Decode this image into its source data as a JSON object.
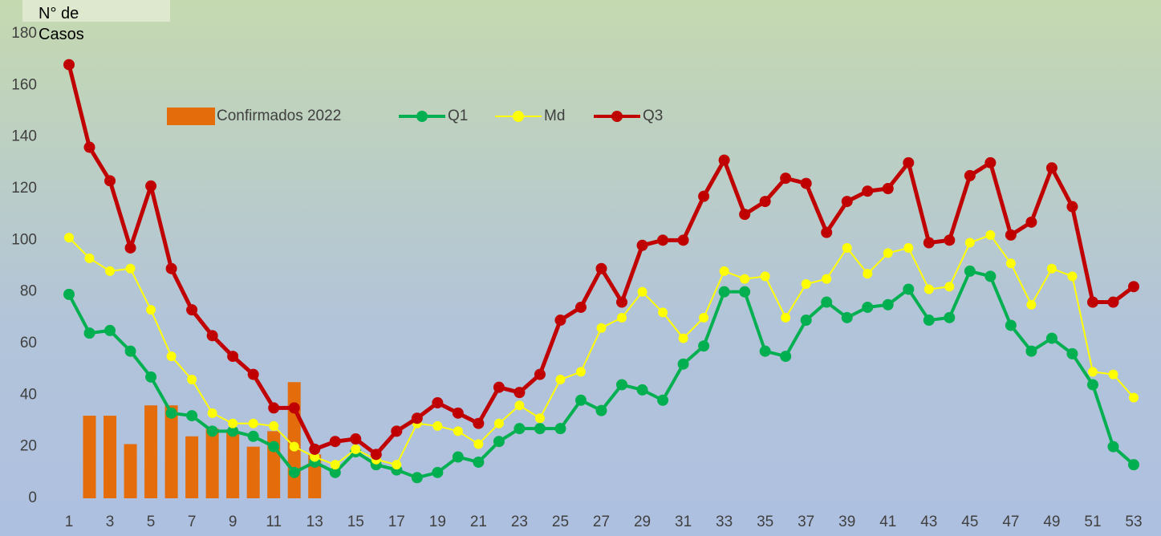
{
  "chart_data": {
    "type": "bar-line",
    "y_axis_label": "N° de Casos",
    "categories": [
      1,
      null,
      3,
      null,
      5,
      null,
      7,
      null,
      9,
      null,
      11,
      null,
      13,
      null,
      15,
      null,
      17,
      null,
      19,
      null,
      21,
      null,
      23,
      null,
      25,
      null,
      27,
      null,
      29,
      null,
      31,
      null,
      33,
      null,
      35,
      null,
      37,
      null,
      39,
      null,
      41,
      null,
      43,
      null,
      45,
      null,
      47,
      null,
      49,
      null,
      51,
      null,
      53
    ],
    "series": [
      {
        "name": "Confirmados 2022",
        "type": "bar",
        "color": "#e46c0a",
        "values": [
          null,
          32,
          32,
          21,
          36,
          36,
          24,
          27,
          26,
          20,
          26,
          45,
          17,
          null,
          null,
          null,
          null,
          null,
          null,
          null,
          null,
          null,
          null,
          null,
          null,
          null,
          null,
          null,
          null,
          null,
          null,
          null,
          null,
          null,
          null,
          null,
          null,
          null,
          null,
          null,
          null,
          null,
          null,
          null,
          null,
          null,
          null,
          null,
          null,
          null,
          null,
          null,
          null
        ]
      },
      {
        "name": "Q1",
        "type": "line",
        "color": "#00b050",
        "values": [
          79,
          64,
          65,
          57,
          47,
          33,
          32,
          26,
          26,
          24,
          20,
          10,
          14,
          10,
          18,
          13,
          11,
          8,
          10,
          16,
          14,
          22,
          27,
          27,
          27,
          38,
          34,
          44,
          42,
          38,
          52,
          59,
          80,
          80,
          57,
          55,
          69,
          76,
          70,
          74,
          75,
          81,
          69,
          70,
          88,
          86,
          67,
          57,
          62,
          56,
          44,
          20,
          13
        ]
      },
      {
        "name": "Md",
        "type": "line",
        "color": "#ffff00",
        "values": [
          101,
          93,
          88,
          89,
          73,
          55,
          46,
          33,
          29,
          29,
          28,
          20,
          16,
          13,
          19,
          15,
          13,
          29,
          28,
          26,
          21,
          29,
          36,
          31,
          46,
          49,
          66,
          70,
          80,
          72,
          62,
          70,
          88,
          85,
          86,
          70,
          83,
          85,
          97,
          87,
          95,
          97,
          81,
          82,
          99,
          102,
          91,
          75,
          89,
          86,
          49,
          48,
          39
        ]
      },
      {
        "name": "Q3",
        "type": "line",
        "color": "#c00000",
        "values": [
          168,
          136,
          123,
          97,
          121,
          89,
          73,
          63,
          55,
          48,
          35,
          35,
          19,
          22,
          23,
          17,
          26,
          31,
          37,
          33,
          29,
          43,
          41,
          48,
          69,
          74,
          89,
          76,
          98,
          100,
          100,
          117,
          131,
          110,
          115,
          124,
          122,
          103,
          115,
          119,
          120,
          130,
          99,
          100,
          125,
          130,
          102,
          107,
          128,
          113,
          76,
          76,
          82
        ]
      }
    ],
    "ylim": [
      0,
      180
    ],
    "yticks": [
      0,
      20,
      40,
      60,
      80,
      100,
      120,
      140,
      160,
      180
    ]
  }
}
